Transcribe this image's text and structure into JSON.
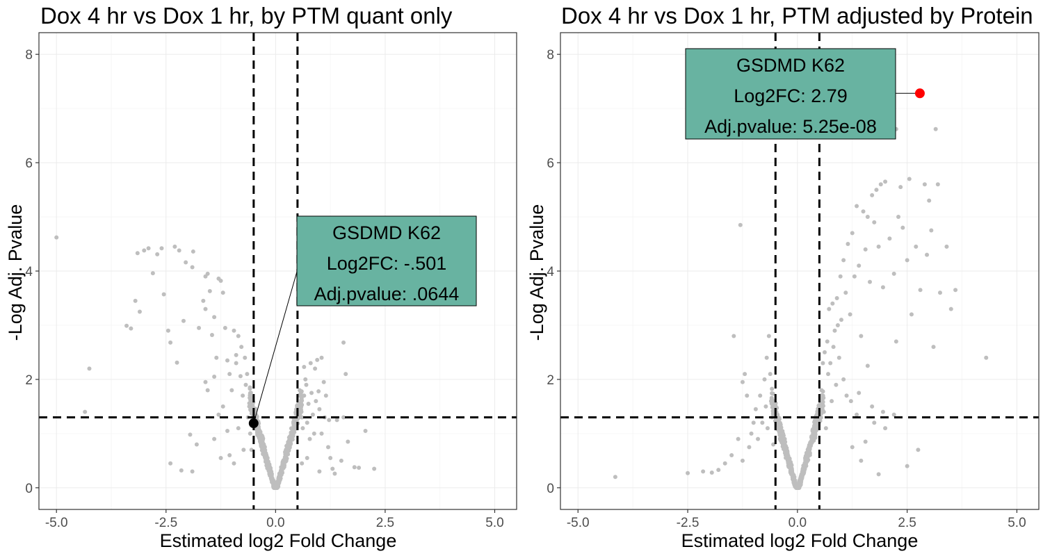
{
  "chart_data": [
    {
      "type": "scatter",
      "title": "Dox 4 hr vs Dox 1 hr, by PTM quant only",
      "xlabel": "Estimated log2 Fold Change",
      "ylabel": "-Log Adj. Pvalue",
      "xlim": [
        -5.4,
        5.5
      ],
      "ylim": [
        -0.4,
        8.4
      ],
      "x_ticks": [
        "-5.0",
        "-2.5",
        "0.0",
        "2.5",
        "5.0"
      ],
      "x_tick_values": [
        -5.0,
        -2.5,
        0.0,
        2.5,
        5.0
      ],
      "y_ticks": [
        "0",
        "2",
        "4",
        "6",
        "8"
      ],
      "y_tick_values": [
        0,
        2,
        4,
        6,
        8
      ],
      "grid": true,
      "vlines": [
        -0.5,
        0.5
      ],
      "hline": 1.3,
      "point_color": "#bebebe",
      "points": [
        [
          -5.0,
          4.62
        ],
        [
          -4.25,
          2.2
        ],
        [
          -4.35,
          1.4
        ],
        [
          -3.4,
          2.99
        ],
        [
          -3.3,
          2.94
        ],
        [
          -3.2,
          3.45
        ],
        [
          -3.15,
          4.33
        ],
        [
          -3.1,
          3.25
        ],
        [
          -3.0,
          4.38
        ],
        [
          -2.9,
          4.42
        ],
        [
          -2.8,
          3.96
        ],
        [
          -2.7,
          4.31
        ],
        [
          -2.6,
          4.42
        ],
        [
          -2.55,
          3.57
        ],
        [
          -2.45,
          2.9
        ],
        [
          -2.4,
          0.45
        ],
        [
          -2.4,
          2.68
        ],
        [
          -2.3,
          4.45
        ],
        [
          -2.25,
          2.31
        ],
        [
          -2.2,
          4.38
        ],
        [
          -2.1,
          3.08
        ],
        [
          -2.05,
          4.16
        ],
        [
          -1.9,
          4.07
        ],
        [
          -1.88,
          4.36
        ],
        [
          -1.9,
          0.3
        ],
        [
          -1.8,
          0.8
        ],
        [
          -1.75,
          2.95
        ],
        [
          -1.65,
          3.45
        ],
        [
          -1.6,
          3.9
        ],
        [
          -1.6,
          3.3
        ],
        [
          -1.55,
          3.95
        ],
        [
          -1.5,
          3.63
        ],
        [
          -1.45,
          2.82
        ],
        [
          -1.4,
          3.15
        ],
        [
          -1.35,
          2.4
        ],
        [
          -1.3,
          3.86
        ],
        [
          -1.25,
          3.82
        ],
        [
          -1.2,
          3.6
        ],
        [
          -1.15,
          2.95
        ],
        [
          -1.1,
          2.35
        ],
        [
          -1.05,
          2.1
        ],
        [
          -1.0,
          1.8
        ],
        [
          -0.95,
          2.9
        ],
        [
          -0.9,
          2.3
        ],
        [
          -0.85,
          2.8
        ],
        [
          -0.85,
          1.1
        ],
        [
          -0.8,
          2.06
        ],
        [
          -0.78,
          2.6
        ],
        [
          -0.75,
          1.7
        ],
        [
          -0.73,
          0.7
        ],
        [
          -0.7,
          2.4
        ],
        [
          -0.68,
          1.9
        ],
        [
          -0.65,
          2.1
        ],
        [
          -0.63,
          1.3
        ],
        [
          -0.6,
          1.5
        ],
        [
          -0.58,
          1.0
        ],
        [
          -0.55,
          0.7
        ],
        [
          -1.6,
          1.95
        ],
        [
          -1.55,
          1.8
        ],
        [
          -1.4,
          2.05
        ],
        [
          -1.3,
          1.35
        ],
        [
          -1.2,
          1.5
        ],
        [
          -1.1,
          1.05
        ],
        [
          -1.05,
          0.6
        ],
        [
          -0.95,
          0.45
        ],
        [
          -1.25,
          0.55
        ],
        [
          -1.4,
          0.9
        ],
        [
          -2.15,
          0.32
        ],
        [
          -1.95,
          0.98
        ],
        [
          -0.9,
          2.45
        ],
        [
          0.55,
          1.8
        ],
        [
          0.58,
          1.5
        ],
        [
          0.6,
          1.3
        ],
        [
          0.62,
          1.1
        ],
        [
          0.65,
          1.7
        ],
        [
          0.68,
          2.0
        ],
        [
          0.7,
          1.9
        ],
        [
          0.72,
          1.2
        ],
        [
          0.75,
          1.55
        ],
        [
          0.78,
          0.9
        ],
        [
          0.8,
          2.3
        ],
        [
          0.82,
          1.75
        ],
        [
          0.85,
          1.35
        ],
        [
          0.88,
          1.0
        ],
        [
          0.9,
          2.2
        ],
        [
          0.92,
          1.6
        ],
        [
          0.95,
          2.36
        ],
        [
          1.0,
          1.45
        ],
        [
          1.05,
          2.4
        ],
        [
          1.05,
          1.0
        ],
        [
          1.1,
          1.95
        ],
        [
          1.12,
          1.3
        ],
        [
          1.15,
          1.7
        ],
        [
          1.2,
          0.75
        ],
        [
          1.22,
          1.25
        ],
        [
          1.25,
          0.55
        ],
        [
          1.3,
          0.35
        ],
        [
          1.35,
          0.26
        ],
        [
          1.4,
          1.25
        ],
        [
          1.5,
          0.5
        ],
        [
          1.55,
          1.3
        ],
        [
          1.6,
          2.1
        ],
        [
          1.65,
          0.85
        ],
        [
          1.55,
          2.68
        ],
        [
          1.8,
          0.38
        ],
        [
          1.9,
          0.37
        ],
        [
          2.05,
          1.05
        ],
        [
          2.25,
          0.35
        ],
        [
          1.0,
          0.3
        ],
        [
          0.98,
          1.78
        ],
        [
          0.65,
          2.23
        ],
        [
          0.72,
          0.55
        ],
        [
          0.6,
          0.45
        ]
      ],
      "highlight": {
        "x": -0.501,
        "y": 1.19,
        "color": "#000000"
      },
      "annotation": {
        "name": "GSDMD K62",
        "fc": "Log2FC: -.501",
        "pval": "Adj.pvalue: .0644",
        "fill": "#68b3a1"
      }
    },
    {
      "type": "scatter",
      "title": "Dox 4 hr vs Dox 1 hr, PTM adjusted by Protein",
      "xlabel": "Estimated log2 Fold Change",
      "ylabel": "-Log Adj. Pvalue",
      "xlim": [
        -5.4,
        5.5
      ],
      "ylim": [
        -0.4,
        8.4
      ],
      "x_ticks": [
        "-5.0",
        "-2.5",
        "0.0",
        "2.5",
        "5.0"
      ],
      "x_tick_values": [
        -5.0,
        -2.5,
        0.0,
        2.5,
        5.0
      ],
      "y_ticks": [
        "0",
        "2",
        "4",
        "6",
        "8"
      ],
      "y_tick_values": [
        0,
        2,
        4,
        6,
        8
      ],
      "grid": true,
      "vlines": [
        -0.5,
        0.5
      ],
      "hline": 1.3,
      "point_color": "#bebebe",
      "points": [
        [
          -4.15,
          0.2
        ],
        [
          -2.5,
          0.27
        ],
        [
          -2.15,
          0.3
        ],
        [
          -1.95,
          0.28
        ],
        [
          -1.8,
          0.33
        ],
        [
          -1.65,
          0.45
        ],
        [
          -1.5,
          0.6
        ],
        [
          -1.35,
          0.9
        ],
        [
          -1.25,
          0.5
        ],
        [
          -1.1,
          0.75
        ],
        [
          -1.0,
          1.2
        ],
        [
          -0.95,
          1.45
        ],
        [
          -0.9,
          0.9
        ],
        [
          -0.85,
          1.7
        ],
        [
          -0.8,
          1.2
        ],
        [
          -0.75,
          2.0
        ],
        [
          -0.72,
          1.5
        ],
        [
          -0.7,
          2.4
        ],
        [
          -0.68,
          1.1
        ],
        [
          -0.65,
          2.8
        ],
        [
          -0.62,
          2.1
        ],
        [
          -0.6,
          1.6
        ],
        [
          -0.58,
          1.3
        ],
        [
          -0.55,
          0.8
        ],
        [
          -1.2,
          2.1
        ],
        [
          -1.25,
          1.95
        ],
        [
          -1.3,
          4.85
        ],
        [
          -1.45,
          2.8
        ],
        [
          -1.15,
          1.7
        ],
        [
          -1.05,
          1.0
        ],
        [
          0.55,
          1.8
        ],
        [
          0.58,
          2.3
        ],
        [
          0.6,
          1.4
        ],
        [
          0.62,
          2.5
        ],
        [
          0.65,
          1.1
        ],
        [
          0.68,
          2.7
        ],
        [
          0.7,
          2.1
        ],
        [
          0.72,
          3.3
        ],
        [
          0.75,
          2.3
        ],
        [
          0.78,
          1.6
        ],
        [
          0.8,
          3.4
        ],
        [
          0.82,
          2.6
        ],
        [
          0.85,
          2.9
        ],
        [
          0.88,
          1.9
        ],
        [
          0.9,
          3.5
        ],
        [
          0.92,
          3.0
        ],
        [
          0.95,
          2.4
        ],
        [
          0.98,
          3.9
        ],
        [
          1.0,
          3.1
        ],
        [
          1.05,
          4.2
        ],
        [
          1.05,
          2.0
        ],
        [
          1.1,
          3.6
        ],
        [
          1.12,
          1.7
        ],
        [
          1.15,
          4.5
        ],
        [
          1.2,
          3.2
        ],
        [
          1.22,
          1.6
        ],
        [
          1.25,
          4.7
        ],
        [
          1.3,
          3.9
        ],
        [
          1.35,
          5.2
        ],
        [
          1.4,
          4.1
        ],
        [
          1.45,
          2.8
        ],
        [
          1.5,
          5.1
        ],
        [
          1.55,
          4.4
        ],
        [
          1.6,
          5.0
        ],
        [
          1.65,
          3.8
        ],
        [
          1.7,
          5.4
        ],
        [
          1.75,
          4.9
        ],
        [
          1.8,
          5.5
        ],
        [
          1.85,
          4.45
        ],
        [
          1.9,
          5.6
        ],
        [
          1.95,
          3.7
        ],
        [
          2.0,
          5.65
        ],
        [
          2.1,
          4.6
        ],
        [
          2.2,
          3.95
        ],
        [
          2.25,
          2.7
        ],
        [
          2.3,
          5.0
        ],
        [
          2.4,
          4.8
        ],
        [
          2.5,
          4.2
        ],
        [
          2.55,
          5.7
        ],
        [
          2.6,
          3.2
        ],
        [
          2.7,
          4.45
        ],
        [
          2.75,
          0.7
        ],
        [
          2.8,
          3.65
        ],
        [
          2.9,
          5.6
        ],
        [
          2.95,
          4.3
        ],
        [
          3.0,
          5.3
        ],
        [
          3.05,
          4.75
        ],
        [
          3.1,
          2.6
        ],
        [
          3.15,
          6.62
        ],
        [
          3.2,
          5.6
        ],
        [
          3.25,
          3.6
        ],
        [
          3.4,
          4.45
        ],
        [
          3.5,
          3.3
        ],
        [
          3.6,
          3.65
        ],
        [
          4.3,
          2.4
        ],
        [
          1.25,
          0.75
        ],
        [
          1.35,
          1.35
        ],
        [
          1.45,
          0.5
        ],
        [
          1.55,
          0.85
        ],
        [
          1.6,
          2.25
        ],
        [
          1.75,
          1.2
        ],
        [
          1.85,
          0.25
        ],
        [
          2.0,
          1.1
        ],
        [
          2.2,
          1.35
        ],
        [
          2.5,
          0.4
        ],
        [
          2.25,
          6.62
        ],
        [
          2.35,
          5.55
        ],
        [
          1.95,
          1.4
        ],
        [
          1.7,
          1.5
        ],
        [
          1.4,
          1.75
        ]
      ],
      "highlight": {
        "x": 2.79,
        "y": 7.28,
        "color": "#ff0000"
      },
      "annotation": {
        "name": "GSDMD K62",
        "fc": "Log2FC: 2.79",
        "pval": "Adj.pvalue: 5.25e-08",
        "fill": "#68b3a1"
      }
    }
  ]
}
